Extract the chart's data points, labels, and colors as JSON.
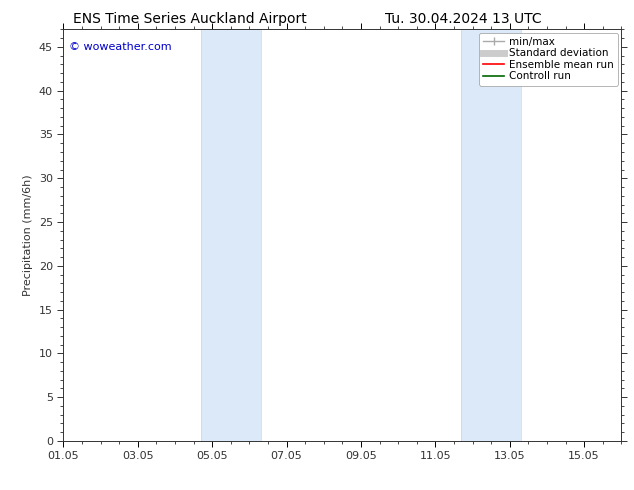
{
  "title_left": "ENS Time Series Auckland Airport",
  "title_right": "Tu. 30.04.2024 13 UTC",
  "ylabel": "Precipitation (mm/6h)",
  "watermark": "© woweather.com",
  "watermark_color": "#0000cc",
  "xlim_start": 0,
  "xlim_end": 15,
  "ylim_bottom": 0,
  "ylim_top": 47,
  "yticks": [
    0,
    5,
    10,
    15,
    20,
    25,
    30,
    35,
    40,
    45
  ],
  "xtick_labels": [
    "01.05",
    "03.05",
    "05.05",
    "07.05",
    "09.05",
    "11.05",
    "13.05",
    "15.05"
  ],
  "xtick_positions": [
    0,
    2,
    4,
    6,
    8,
    10,
    12,
    14
  ],
  "shaded_bands": [
    {
      "x_start": 3.7,
      "x_end": 5.3
    },
    {
      "x_start": 10.7,
      "x_end": 12.3
    }
  ],
  "shade_color": "#dce9f8",
  "shade_line_color": "#c0d8f0",
  "legend_entries": [
    {
      "label": "min/max",
      "color": "#aaaaaa",
      "linewidth": 1.0,
      "style": "solid",
      "type": "errorbar"
    },
    {
      "label": "Standard deviation",
      "color": "#cccccc",
      "linewidth": 5,
      "style": "solid",
      "type": "line"
    },
    {
      "label": "Ensemble mean run",
      "color": "#ff0000",
      "linewidth": 1.2,
      "style": "solid",
      "type": "line"
    },
    {
      "label": "Controll run",
      "color": "#006600",
      "linewidth": 1.2,
      "style": "solid",
      "type": "line"
    }
  ],
  "bg_color": "#ffffff",
  "spine_color": "#333333",
  "tick_color": "#333333",
  "title_fontsize": 10,
  "label_fontsize": 8,
  "tick_fontsize": 8,
  "legend_fontsize": 7.5,
  "watermark_fontsize": 8
}
